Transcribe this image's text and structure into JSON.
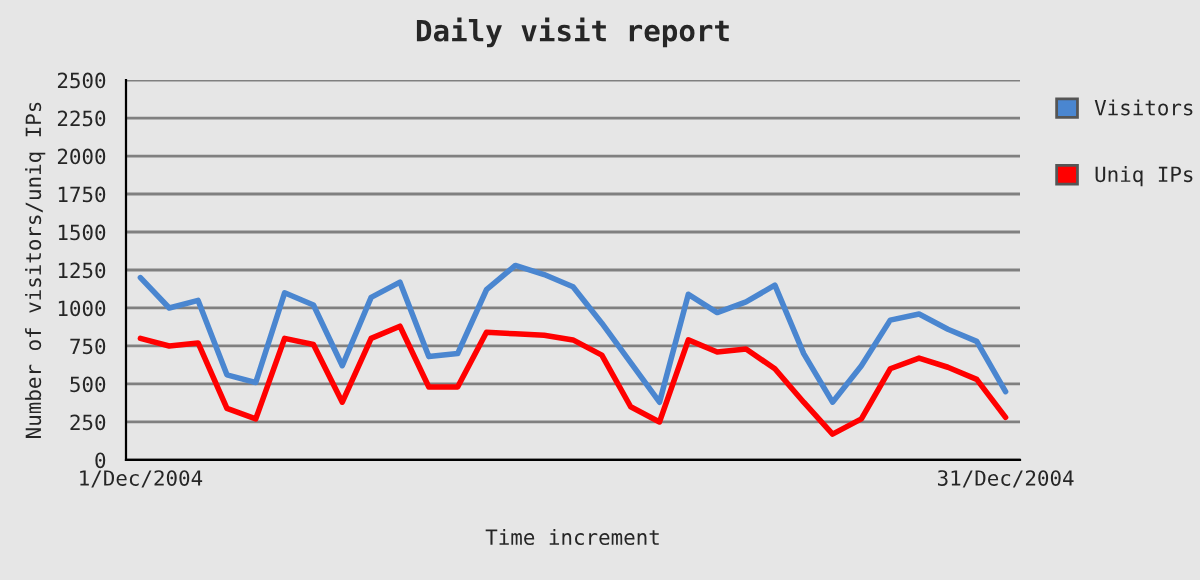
{
  "chart_data": {
    "type": "line",
    "title": "Daily visit report",
    "xlabel": "Time increment",
    "ylabel": "Number of visitors/uniq IPs",
    "categories": [
      "1/Dec/2004",
      null,
      null,
      null,
      null,
      null,
      null,
      null,
      null,
      null,
      null,
      null,
      null,
      null,
      null,
      null,
      null,
      null,
      null,
      null,
      null,
      null,
      null,
      null,
      null,
      null,
      null,
      null,
      null,
      null,
      "31/Dec/2004"
    ],
    "series": [
      {
        "name": "Visitors",
        "color": "#4a86d0",
        "values": [
          1200,
          1000,
          1050,
          560,
          510,
          1100,
          1020,
          620,
          1070,
          1170,
          680,
          700,
          1120,
          1280,
          1220,
          1140,
          900,
          640,
          380,
          1090,
          970,
          1040,
          1150,
          700,
          380,
          620,
          920,
          960,
          860,
          780,
          450
        ]
      },
      {
        "name": "Uniq IPs",
        "color": "#ff0000",
        "values": [
          800,
          750,
          770,
          340,
          270,
          800,
          760,
          380,
          800,
          880,
          480,
          480,
          840,
          830,
          820,
          790,
          690,
          350,
          250,
          790,
          710,
          730,
          600,
          380,
          170,
          270,
          600,
          670,
          610,
          530,
          280
        ]
      }
    ],
    "ylim": [
      0,
      2500
    ],
    "yticks": [
      0,
      250,
      500,
      750,
      1000,
      1250,
      1500,
      1750,
      2000,
      2250,
      2500
    ],
    "grid": "y",
    "legend": "right",
    "marker": "none",
    "line_style": "solid"
  }
}
